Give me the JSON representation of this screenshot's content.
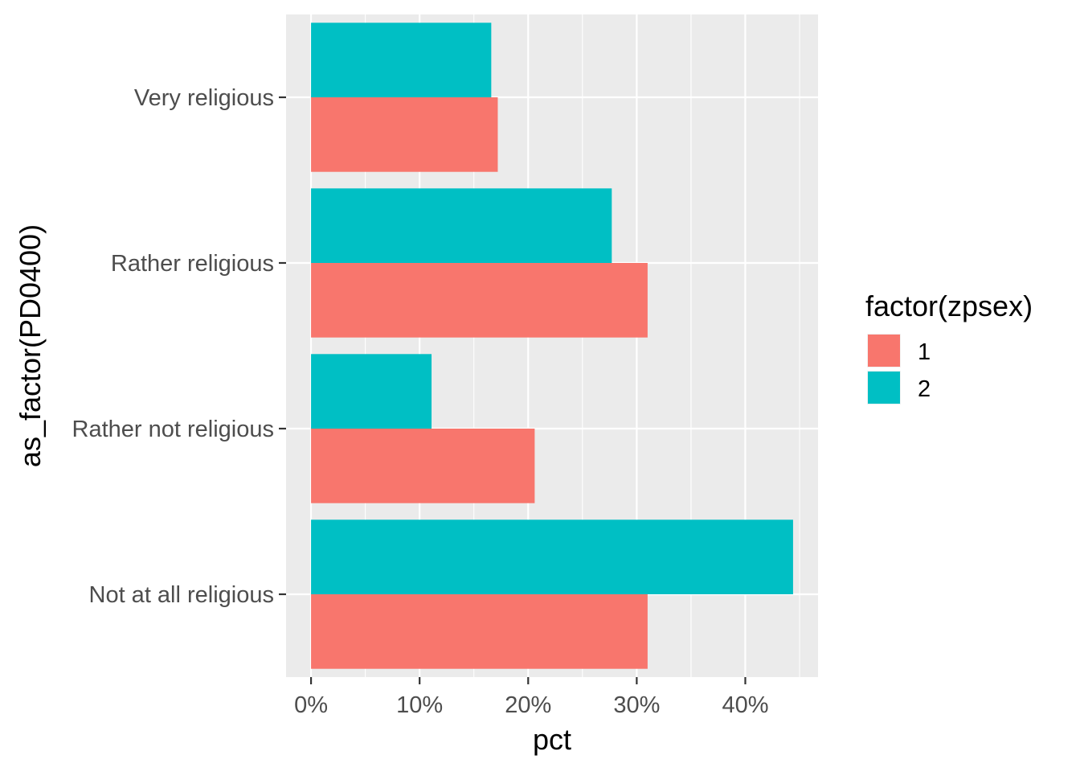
{
  "chart_data": {
    "type": "bar",
    "orientation": "horizontal",
    "categories": [
      "Very religious",
      "Rather religious",
      "Rather not religious",
      "Not at all religious"
    ],
    "series": [
      {
        "name": "1",
        "values": [
          17.2,
          31.0,
          20.6,
          31.0
        ]
      },
      {
        "name": "2",
        "values": [
          16.6,
          27.7,
          11.1,
          44.4
        ]
      }
    ],
    "xlabel": "pct",
    "ylabel": "as_factor(PD0400)",
    "xlim": [
      -2.3,
      46.7
    ],
    "x_ticks": [
      0,
      10,
      20,
      30,
      40
    ],
    "x_tick_labels": [
      "0%",
      "10%",
      "20%",
      "30%",
      "40%"
    ],
    "grid": true,
    "legend": {
      "title": "factor(zpsex)",
      "position": "right"
    },
    "colors": {
      "1": "#F8766D",
      "2": "#00BFC4",
      "panel_background": "#EBEBEB",
      "grid": "#FFFFFF"
    }
  }
}
